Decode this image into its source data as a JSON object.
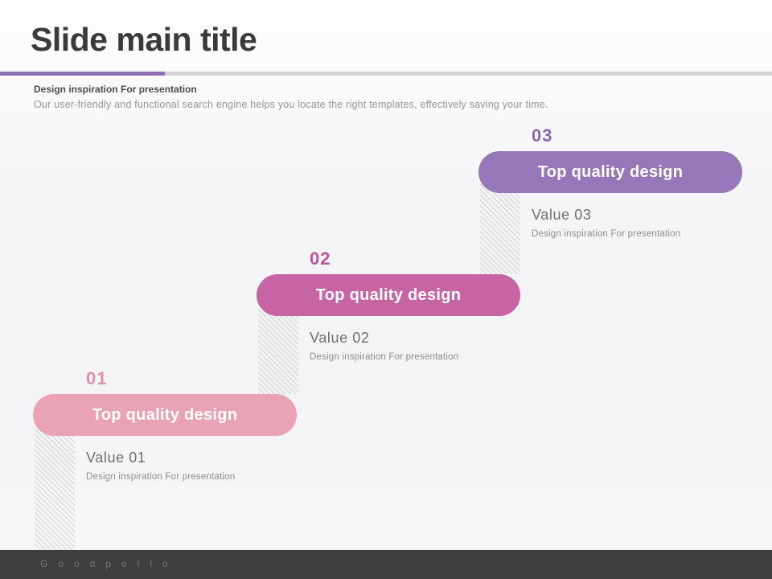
{
  "slide": {
    "title": "Slide main title",
    "subtitle": "Design inspiration For presentation",
    "body": "Our user-friendly and functional search engine helps you locate the right templates, effectively saving your time.",
    "footer_brand": "Goodpello"
  },
  "colors": {
    "title_text": "#3a3a3a",
    "accent_line": "#8d70ae",
    "line_gray": "#d3d3d3",
    "subtitle_text": "#4c4c4c",
    "body_text": "#969696",
    "value_text": "#6f6f6f",
    "caption_text": "#8d8d8d",
    "hatch_stripe": "#dadada",
    "pill_text": "#ffffff",
    "footer_bg": "#3f3f3f",
    "footer_text": "#757575"
  },
  "steps": [
    {
      "number": "01",
      "number_color": "#e48fa9",
      "pill_label": "Top quality design",
      "pill_color": "#eaa2b5",
      "value": "Value 01",
      "caption": "Design inspiration For presentation"
    },
    {
      "number": "02",
      "number_color": "#c2549c",
      "pill_label": "Top quality design",
      "pill_color": "#c765a4",
      "value": "Value 02",
      "caption": "Design inspiration For presentation"
    },
    {
      "number": "03",
      "number_color": "#8a69ac",
      "pill_label": "Top quality design",
      "pill_color": "#9678b8",
      "value": "Value 03",
      "caption": "Design inspiration For presentation"
    }
  ]
}
